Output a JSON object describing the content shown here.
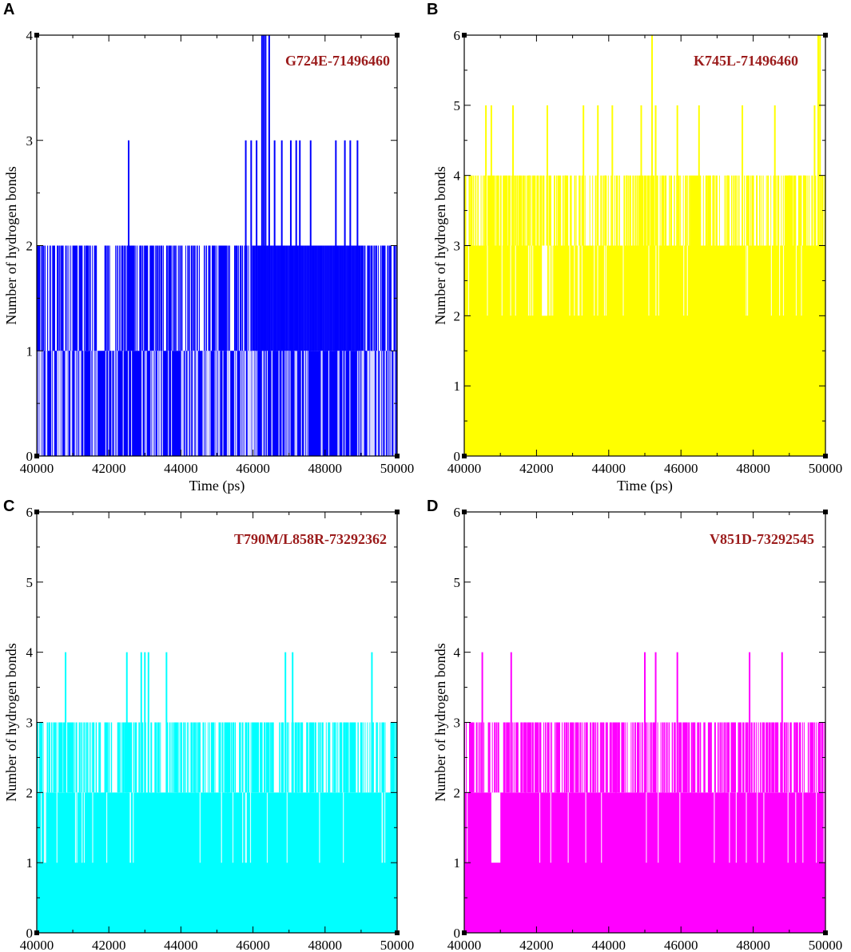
{
  "figure": {
    "panels": [
      "A",
      "B",
      "C",
      "D"
    ]
  },
  "chart_data": [
    {
      "type": "line",
      "panel": "A",
      "title": "G724E-71496460",
      "xlabel": "Time (ps)",
      "ylabel": "Number of hydrogen bonds",
      "xlim": [
        40000,
        50000
      ],
      "ylim": [
        0,
        4
      ],
      "xticks": [
        40000,
        42000,
        44000,
        46000,
        48000,
        50000
      ],
      "yticks": [
        0,
        1,
        2,
        3,
        4
      ],
      "color": "#0000ff",
      "series": [
        {
          "name": "hbonds",
          "baseline": 1,
          "base_segments": [
            [
              40000,
              40100,
              2
            ],
            [
              46000,
              49000,
              2
            ]
          ],
          "drops": [
            [
              40000,
              41600,
              40
            ],
            [
              41600,
              44000,
              28
            ],
            [
              44000,
              45800,
              45
            ],
            [
              45800,
              46400,
              15
            ],
            [
              46400,
              49000,
              28
            ],
            [
              49000,
              50000,
              35
            ]
          ],
          "spikes": [
            [
              40150,
              2
            ],
            [
              40450,
              2
            ],
            [
              41200,
              2
            ],
            [
              41250,
              2
            ],
            [
              42550,
              3
            ],
            [
              42650,
              2
            ],
            [
              43000,
              2
            ],
            [
              43400,
              2
            ],
            [
              43700,
              2
            ],
            [
              44200,
              2
            ],
            [
              44800,
              2
            ],
            [
              45800,
              3
            ],
            [
              45950,
              3
            ],
            [
              46100,
              3
            ],
            [
              46250,
              4
            ],
            [
              46300,
              4
            ],
            [
              46350,
              4
            ],
            [
              46450,
              4
            ],
            [
              46600,
              3
            ],
            [
              46800,
              3
            ],
            [
              47050,
              3
            ],
            [
              47200,
              3
            ],
            [
              47300,
              3
            ],
            [
              47600,
              3
            ],
            [
              48300,
              3
            ],
            [
              48550,
              3
            ],
            [
              48700,
              3
            ],
            [
              48900,
              3
            ],
            [
              49100,
              2
            ],
            [
              49300,
              2
            ],
            [
              49600,
              2
            ],
            [
              49800,
              2
            ]
          ]
        }
      ]
    },
    {
      "type": "line",
      "panel": "B",
      "title": "K745L-71496460",
      "xlabel": "Time (ps)",
      "ylabel": "Number of hydrogen bonds",
      "xlim": [
        40000,
        50000
      ],
      "ylim": [
        0,
        6
      ],
      "xticks": [
        40000,
        42000,
        44000,
        46000,
        48000,
        50000
      ],
      "yticks": [
        0,
        1,
        2,
        3,
        4,
        5,
        6
      ],
      "color": "#ffff00",
      "series": [
        {
          "name": "hbonds",
          "baseline": 3,
          "base_segments": [
            [
              42150,
              42300,
              2
            ]
          ],
          "drops": [
            [
              40000,
              50000,
              35
            ]
          ],
          "spikes": [
            [
              40150,
              4
            ],
            [
              40600,
              5
            ],
            [
              40750,
              5
            ],
            [
              41350,
              5
            ],
            [
              41800,
              4
            ],
            [
              42300,
              5
            ],
            [
              42800,
              4
            ],
            [
              43300,
              5
            ],
            [
              43700,
              5
            ],
            [
              43900,
              4
            ],
            [
              44100,
              5
            ],
            [
              44500,
              4
            ],
            [
              44900,
              5
            ],
            [
              45200,
              6
            ],
            [
              45300,
              5
            ],
            [
              45900,
              5
            ],
            [
              46500,
              5
            ],
            [
              46900,
              4
            ],
            [
              47300,
              4
            ],
            [
              47700,
              5
            ],
            [
              48100,
              4
            ],
            [
              48600,
              5
            ],
            [
              49000,
              4
            ],
            [
              49400,
              4
            ],
            [
              49700,
              5
            ],
            [
              49800,
              6
            ],
            [
              49850,
              6
            ]
          ]
        }
      ]
    },
    {
      "type": "line",
      "panel": "C",
      "title": "T790M/L858R-73292362",
      "xlabel": "",
      "ylabel": "Number of hydrogen bonds",
      "xlim": [
        40000,
        50000
      ],
      "ylim": [
        0,
        6
      ],
      "xticks": [
        40000,
        42000,
        44000,
        46000,
        48000,
        50000
      ],
      "yticks": [
        0,
        1,
        2,
        3,
        4,
        5,
        6
      ],
      "color": "#00ffff",
      "series": [
        {
          "name": "hbonds",
          "baseline": 2,
          "base_segments": [],
          "drops": [
            [
              40000,
              50000,
              30
            ]
          ],
          "spikes": [
            [
              40300,
              3
            ],
            [
              40800,
              4
            ],
            [
              41000,
              3
            ],
            [
              41400,
              3
            ],
            [
              41900,
              3
            ],
            [
              42400,
              3
            ],
            [
              42500,
              4
            ],
            [
              42900,
              4
            ],
            [
              43000,
              4
            ],
            [
              43100,
              4
            ],
            [
              43300,
              3
            ],
            [
              43600,
              4
            ],
            [
              43900,
              3
            ],
            [
              44400,
              3
            ],
            [
              44900,
              3
            ],
            [
              45300,
              3
            ],
            [
              45800,
              3
            ],
            [
              46400,
              3
            ],
            [
              46900,
              4
            ],
            [
              47100,
              4
            ],
            [
              47200,
              3
            ],
            [
              47600,
              3
            ],
            [
              48100,
              3
            ],
            [
              48600,
              3
            ],
            [
              49000,
              3
            ],
            [
              49300,
              4
            ],
            [
              49600,
              3
            ],
            [
              49900,
              3
            ]
          ]
        }
      ]
    },
    {
      "type": "line",
      "panel": "D",
      "title": "V851D-73292545",
      "xlabel": "",
      "ylabel": "Number of hydrogen bonds",
      "xlim": [
        40000,
        50000
      ],
      "ylim": [
        0,
        6
      ],
      "xticks": [
        40000,
        42000,
        44000,
        46000,
        48000,
        50000
      ],
      "yticks": [
        0,
        1,
        2,
        3,
        4,
        5,
        6
      ],
      "color": "#ff00ff",
      "series": [
        {
          "name": "hbonds",
          "baseline": 2,
          "base_segments": [
            [
              40750,
              41000,
              1
            ]
          ],
          "drops": [
            [
              40000,
              50000,
              20
            ]
          ],
          "spikes": [
            [
              40200,
              3
            ],
            [
              40500,
              4
            ],
            [
              41100,
              3
            ],
            [
              41300,
              4
            ],
            [
              41700,
              3
            ],
            [
              42100,
              3
            ],
            [
              42600,
              3
            ],
            [
              43000,
              3
            ],
            [
              43400,
              3
            ],
            [
              43800,
              3
            ],
            [
              44200,
              3
            ],
            [
              44800,
              3
            ],
            [
              45000,
              4
            ],
            [
              45300,
              4
            ],
            [
              45500,
              3
            ],
            [
              45900,
              4
            ],
            [
              46300,
              3
            ],
            [
              46800,
              3
            ],
            [
              47200,
              3
            ],
            [
              47600,
              3
            ],
            [
              47900,
              4
            ],
            [
              48300,
              3
            ],
            [
              48800,
              4
            ],
            [
              49200,
              3
            ],
            [
              49600,
              3
            ],
            [
              49900,
              3
            ]
          ]
        }
      ]
    }
  ]
}
